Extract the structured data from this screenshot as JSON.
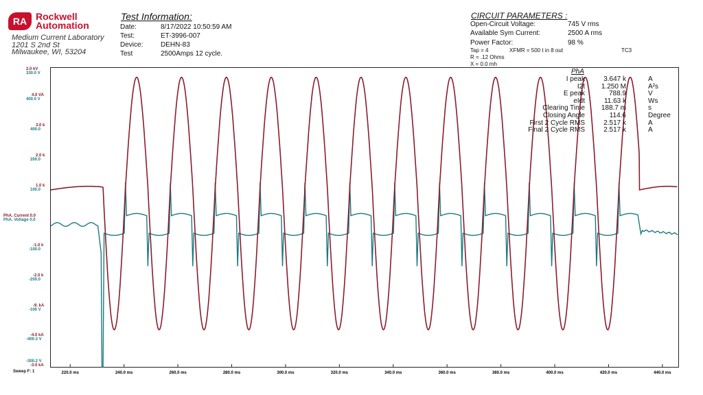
{
  "header": {
    "logo_initials": "RA",
    "brand_line1": "Rockwell",
    "brand_line2": "Automation",
    "lab_name": "Medium Current Laboratory",
    "address_line1": "1201 S 2nd St",
    "address_line2": "Milwaukee, WI, 53204",
    "test_info_title": "Test Information:",
    "test_info": [
      {
        "label": "Date:",
        "value": "8/17/2022   10:50:59 AM"
      },
      {
        "label": "Test:",
        "value": "ET-3996-007"
      },
      {
        "label": "Device:",
        "value": "DEHN-83"
      },
      {
        "label": "Test",
        "value": "2500Amps 12 cycle."
      }
    ],
    "circuit_title": "CIRCUIT PARAMETERS :",
    "circuit_params": [
      {
        "label": "Open-Circuit Voltage:",
        "value": "745 V rms"
      },
      {
        "label": "Available Sym Current:",
        "value": "2500 A rms"
      },
      {
        "label": "Power Factor:",
        "value": "98 %"
      }
    ],
    "tap": "Tap = 4",
    "xfmr": "XFMR = 500 t in 8 out",
    "tc": "TC3",
    "r_value": "R = .12 Ohms",
    "x_value": "X = 0.0 mh"
  },
  "measurements": {
    "title": "PhA",
    "rows": [
      {
        "label": "I peak",
        "value": "3.647 k",
        "unit": "A"
      },
      {
        "label": "I2t",
        "value": "1.250 M",
        "unit": "A²s"
      },
      {
        "label": "E peak",
        "value": "788.9",
        "unit": "V"
      },
      {
        "label": "eIdt",
        "value": "11.63 k",
        "unit": "Ws"
      },
      {
        "label": "Clearing Time",
        "value": "188.7 m",
        "unit": "s"
      },
      {
        "label": "Closing Angle",
        "value": "114.6",
        "unit": "Degree"
      },
      {
        "label": "First 2 Cycle RMS",
        "value": "2.517 k",
        "unit": "A"
      },
      {
        "label": "Final 2 Cycle RMS",
        "value": "2.517 k",
        "unit": "A"
      }
    ]
  },
  "colors": {
    "current": "#8a1c2b",
    "voltage": "#1a7a80",
    "axis": "#222222"
  },
  "chart_data": {
    "type": "line",
    "sweep_label": "Sweep F: 1",
    "x_ticks": [
      "220.0 ms",
      "240.0 ms",
      "260.0 ms",
      "280.0 ms",
      "300.0 ms",
      "320.0 ms",
      "340.0 ms",
      "360.0 ms",
      "380.0 ms",
      "400.0 ms",
      "420.0 ms",
      "440.0 ms"
    ],
    "x_tick_values": [
      220,
      240,
      260,
      280,
      300,
      320,
      340,
      360,
      380,
      400,
      420,
      440
    ],
    "xlim": [
      212.8,
      445.9
    ],
    "current_axis_labels": [
      "2.0 kV",
      "4.0 VA",
      "3.0 k",
      "2.0 k",
      "1.0 k",
      "PhA. Current  0.0",
      "-1.0 k",
      "-2.0 k",
      "-9. kA",
      "-4.0 kA",
      "-3.0 kA"
    ],
    "voltage_axis_labels": [
      "330.0  V",
      "400.0  V",
      "400.0",
      "200.0",
      "100.0",
      "PhA. Voltage  0.0",
      "-100.0",
      "-200.0",
      "-100 V",
      "-400.3  V",
      "-300.2  V"
    ],
    "series": [
      {
        "name": "PhA. Current",
        "unit": "A",
        "ylim": [
          -3000,
          2000
        ],
        "pre_fault_level": 0,
        "fault_start_ms": 232.2,
        "fault_end_ms": 431.5,
        "frequency_hz": 60,
        "peak": 3647
      },
      {
        "name": "PhA. Voltage",
        "unit": "V",
        "ylim": [
          -300.2,
          330.0
        ],
        "arc_level": 22,
        "spike_level": 88,
        "post_fault_level": -25
      }
    ]
  }
}
